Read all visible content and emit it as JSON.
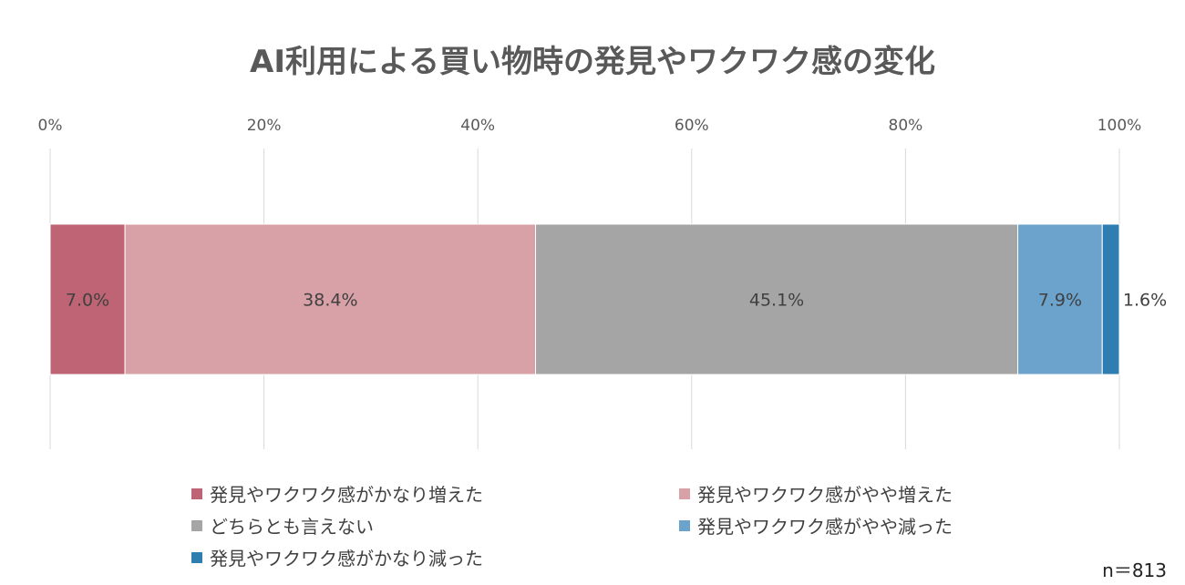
{
  "chart_data": {
    "type": "bar",
    "orientation": "horizontal",
    "stacked": true,
    "title": "AI利用による買い物時の発見やワクワク感の変化",
    "xlim": [
      0,
      100
    ],
    "x_ticks": [
      "0%",
      "20%",
      "40%",
      "60%",
      "80%",
      "100%"
    ],
    "grid": true,
    "legend_position": "bottom",
    "series": [
      {
        "name": "発見やワクワク感がかなり増えた",
        "value": 7.0,
        "label": "7.0%",
        "color": "#BE6474"
      },
      {
        "name": "発見やワクワク感がやや増えた",
        "value": 38.4,
        "label": "38.4%",
        "color": "#D8A0A7"
      },
      {
        "name": "どちらとも言えない",
        "value": 45.1,
        "label": "45.1%",
        "color": "#A5A5A5"
      },
      {
        "name": "発見やワクワク感がやや減った",
        "value": 7.9,
        "label": "7.9%",
        "color": "#6CA3CC"
      },
      {
        "name": "発見やワクワク感がかなり減った",
        "value": 1.6,
        "label": "1.6%",
        "color": "#2E7EB1"
      }
    ],
    "annotation": "n＝813"
  }
}
